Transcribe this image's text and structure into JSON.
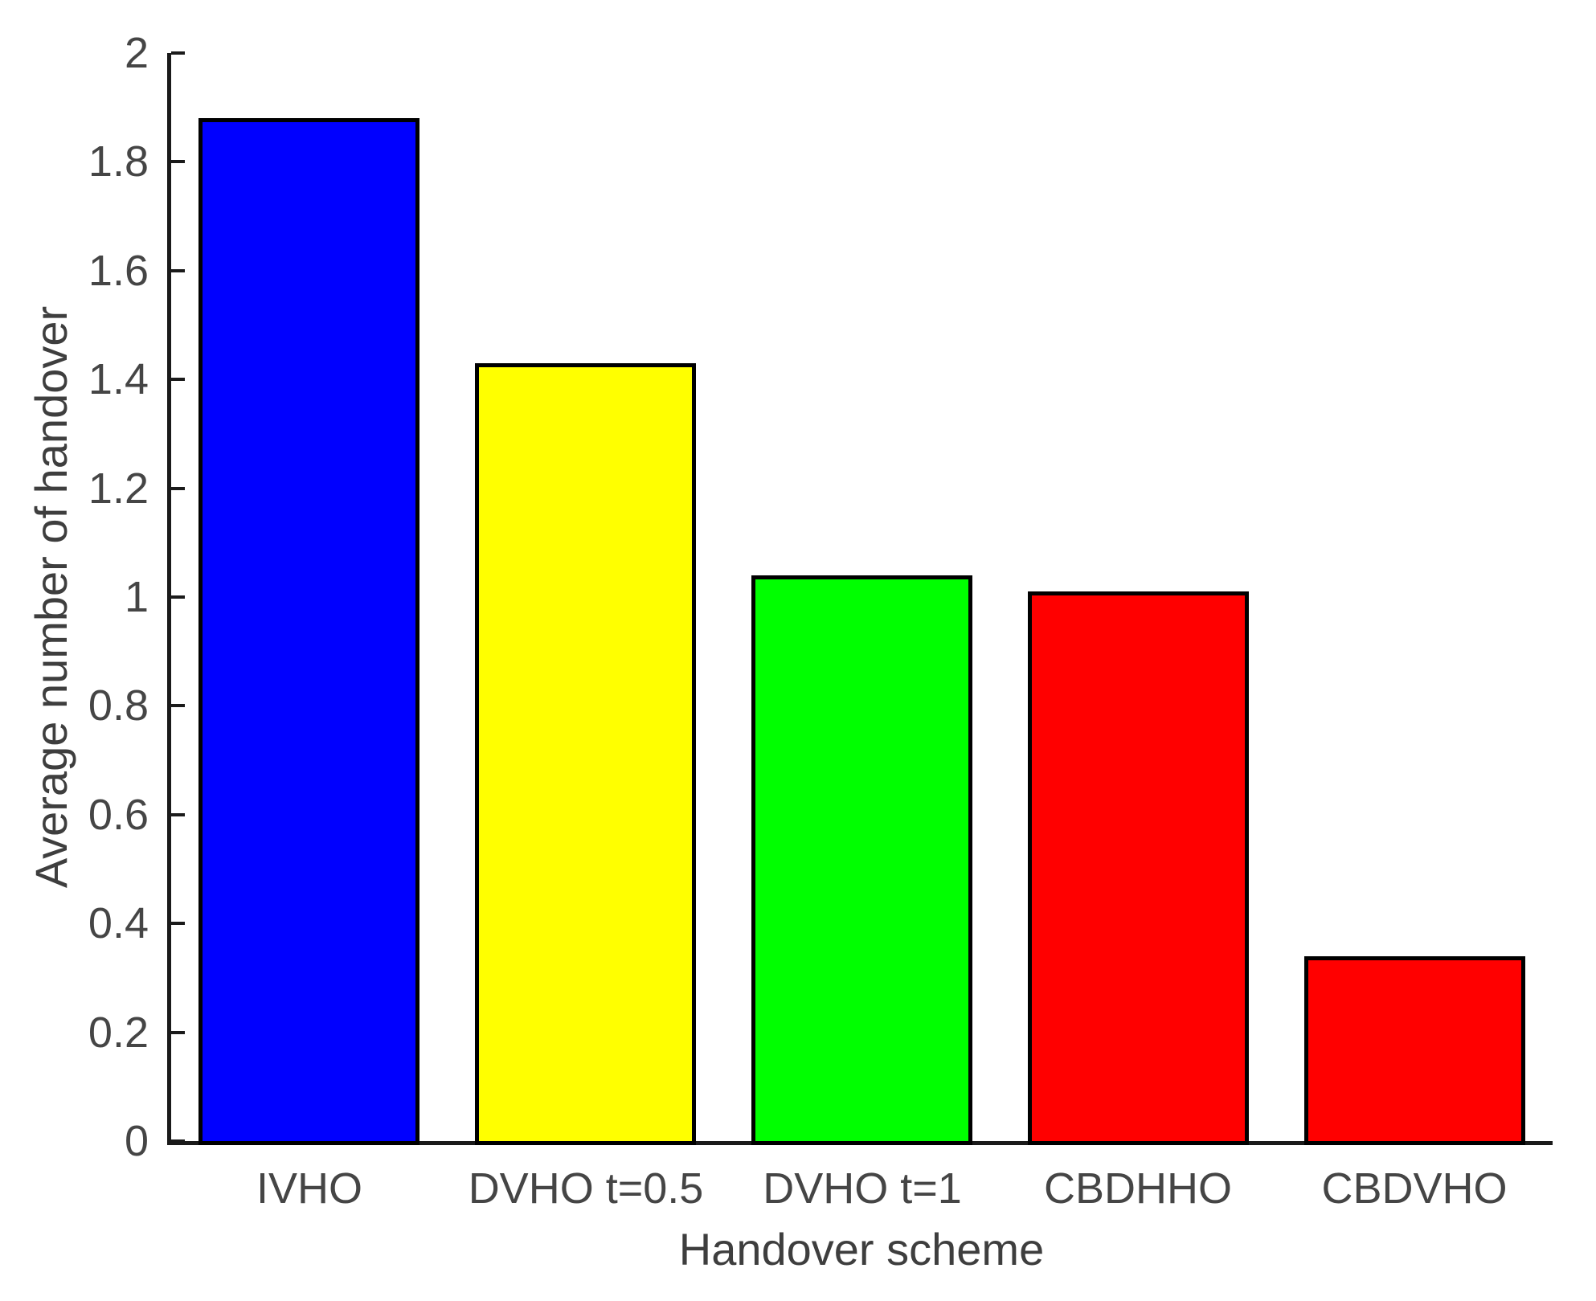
{
  "chart_data": {
    "type": "bar",
    "categories": [
      "IVHO",
      "DVHO t=0.5",
      "DVHO t=1",
      "CBDHHO",
      "CBDVHO"
    ],
    "values": [
      1.88,
      1.43,
      1.04,
      1.01,
      0.34
    ],
    "bar_colors": [
      "#0000ff",
      "#ffff00",
      "#00ff00",
      "#ff0000",
      "#ff0000"
    ],
    "title": "",
    "xlabel": "Handover scheme",
    "ylabel": "Average number of handover",
    "ylim": [
      0,
      2
    ],
    "yticks": [
      {
        "value": 0,
        "label": "0"
      },
      {
        "value": 0.2,
        "label": "0.2"
      },
      {
        "value": 0.4,
        "label": "0.4"
      },
      {
        "value": 0.6,
        "label": "0.6"
      },
      {
        "value": 0.8,
        "label": "0.8"
      },
      {
        "value": 1,
        "label": "1"
      },
      {
        "value": 1.2,
        "label": "1.2"
      },
      {
        "value": 1.4,
        "label": "1.4"
      },
      {
        "value": 1.6,
        "label": "1.6"
      },
      {
        "value": 1.8,
        "label": "1.8"
      },
      {
        "value": 2,
        "label": "2"
      }
    ],
    "bar_width_fraction": 0.8,
    "grid": false,
    "legend": null,
    "bar_edge_color": "#000000",
    "axis_color": "#1a1a1a",
    "tick_label_color": "#454545",
    "axis_label_color": "#3e3e3e",
    "background_color": "#ffffff"
  }
}
